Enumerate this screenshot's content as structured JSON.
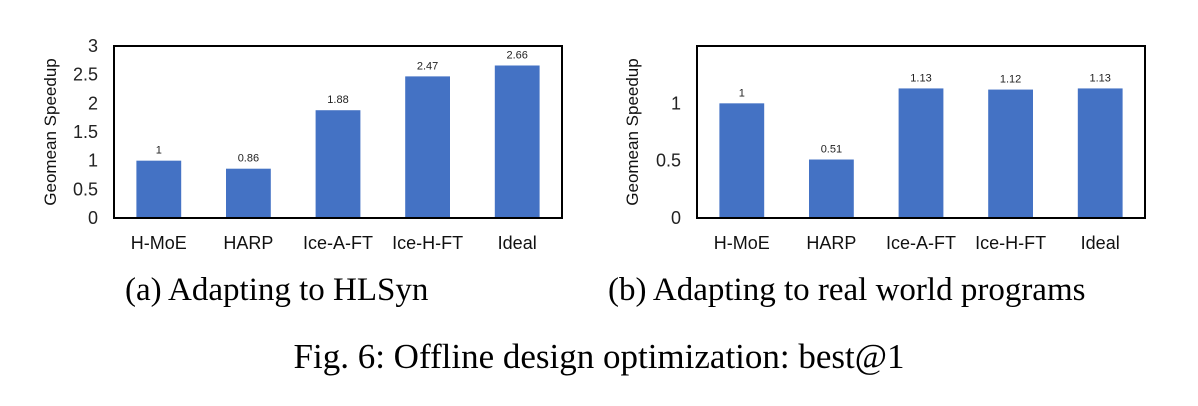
{
  "figure_caption": "Fig. 6: Offline design optimization: best@1",
  "chart_data": [
    {
      "type": "bar",
      "caption": "(a) Adapting to HLSyn",
      "ylabel": "Geomean Speedup",
      "categories": [
        "H-MoE",
        "HARP",
        "Ice-A-FT",
        "Ice-H-FT",
        "Ideal"
      ],
      "values": [
        1,
        0.86,
        1.88,
        2.47,
        2.66
      ],
      "value_labels": [
        "1",
        "0.86",
        "1.88",
        "2.47",
        "2.66"
      ],
      "ylim": [
        0,
        3
      ],
      "yticks": [
        0,
        0.5,
        1,
        1.5,
        2,
        2.5,
        3
      ],
      "ytick_labels": [
        "0",
        "0.5",
        "1",
        "1.5",
        "2",
        "2.5",
        "3"
      ],
      "bar_color": "#4472C4",
      "grid": false
    },
    {
      "type": "bar",
      "caption": "(b) Adapting to real world programs",
      "ylabel": "Geomean Speedup",
      "categories": [
        "H-MoE",
        "HARP",
        "Ice-A-FT",
        "Ice-H-FT",
        "Ideal"
      ],
      "values": [
        1,
        0.51,
        1.13,
        1.12,
        1.13
      ],
      "value_labels": [
        "1",
        "0.51",
        "1.13",
        "1.12",
        "1.13"
      ],
      "ylim": [
        0,
        1.5
      ],
      "yticks": [
        0,
        0.5,
        1
      ],
      "ytick_labels": [
        "0",
        "0.5",
        "1"
      ],
      "bar_color": "#4472C4",
      "grid": false
    }
  ]
}
